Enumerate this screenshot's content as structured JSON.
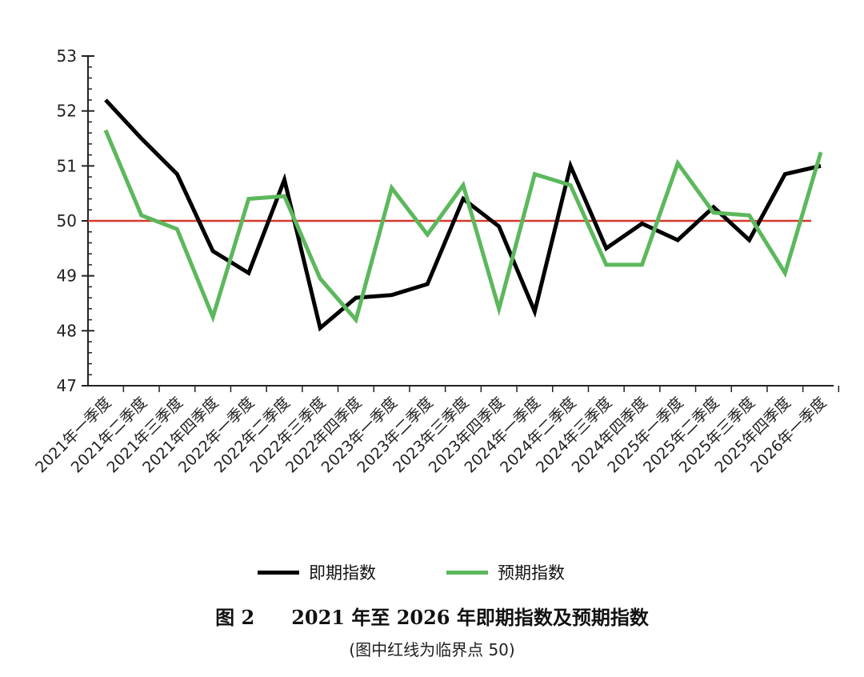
{
  "chart_data": {
    "type": "line",
    "categories": [
      "2021年一季度",
      "2021年二季度",
      "2021年三季度",
      "2021年四季度",
      "2022年一季度",
      "2022年二季度",
      "2022年三季度",
      "2022年四季度",
      "2023年一季度",
      "2023年二季度",
      "2023年三季度",
      "2023年四季度",
      "2024年一季度",
      "2024年二季度",
      "2024年三季度",
      "2024年四季度",
      "2025年一季度",
      "2025年二季度",
      "2025年三季度",
      "2025年四季度",
      "2026年一季度"
    ],
    "series": [
      {
        "name": "即期指数",
        "color": "#000000",
        "values": [
          52.2,
          51.5,
          50.85,
          49.45,
          49.05,
          50.75,
          48.05,
          48.6,
          48.65,
          48.85,
          50.4,
          49.9,
          48.35,
          51.0,
          49.5,
          49.95,
          49.65,
          50.25,
          49.65,
          50.85,
          51.0
        ]
      },
      {
        "name": "预期指数",
        "color": "#5cb85c",
        "values": [
          51.65,
          50.1,
          49.85,
          48.25,
          50.4,
          50.45,
          48.95,
          48.2,
          50.6,
          49.75,
          50.65,
          48.4,
          50.85,
          50.65,
          49.2,
          49.2,
          51.05,
          50.15,
          50.1,
          49.05,
          51.25
        ]
      }
    ],
    "reference_line": {
      "value": 50,
      "color": "#d63a2a"
    },
    "ylim": [
      47,
      53
    ],
    "yticks": [
      47,
      48,
      49,
      50,
      51,
      52,
      53
    ],
    "title": "",
    "xlabel": "",
    "ylabel": "",
    "legend_position": "bottom"
  },
  "caption": {
    "figure_number": "图 2",
    "text": "2021 年至 2026 年即期指数及预期指数"
  },
  "note": "(图中红线为临界点 50)"
}
